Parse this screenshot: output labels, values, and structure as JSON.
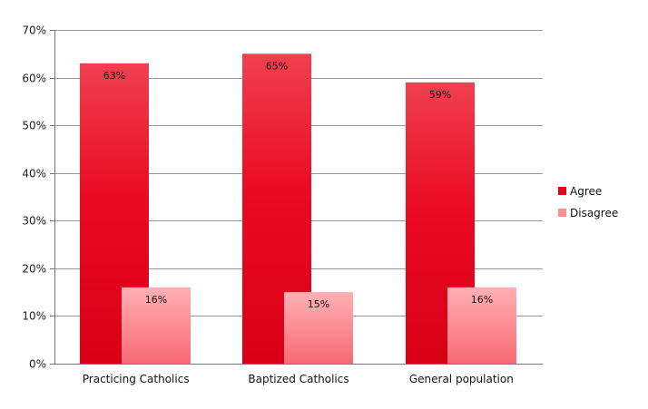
{
  "chart_data": {
    "type": "bar",
    "title": "",
    "xlabel": "",
    "ylabel": "",
    "categories": [
      "Practicing Catholics",
      "Baptized Catholics",
      "General population"
    ],
    "series": [
      {
        "name": "Agree",
        "values": [
          63,
          65,
          59
        ],
        "labels": [
          "63%",
          "65%",
          "59%"
        ],
        "color": "#e5001a"
      },
      {
        "name": "Disagree",
        "values": [
          16,
          15,
          16
        ],
        "labels": [
          "16%",
          "15%",
          "16%"
        ],
        "color": "#ff8080"
      }
    ],
    "ylim": [
      0,
      70
    ],
    "y_ticks": [
      "0%",
      "10%",
      "20%",
      "30%",
      "40%",
      "50%",
      "60%",
      "70%"
    ],
    "grid": true,
    "legend_position": "right"
  }
}
